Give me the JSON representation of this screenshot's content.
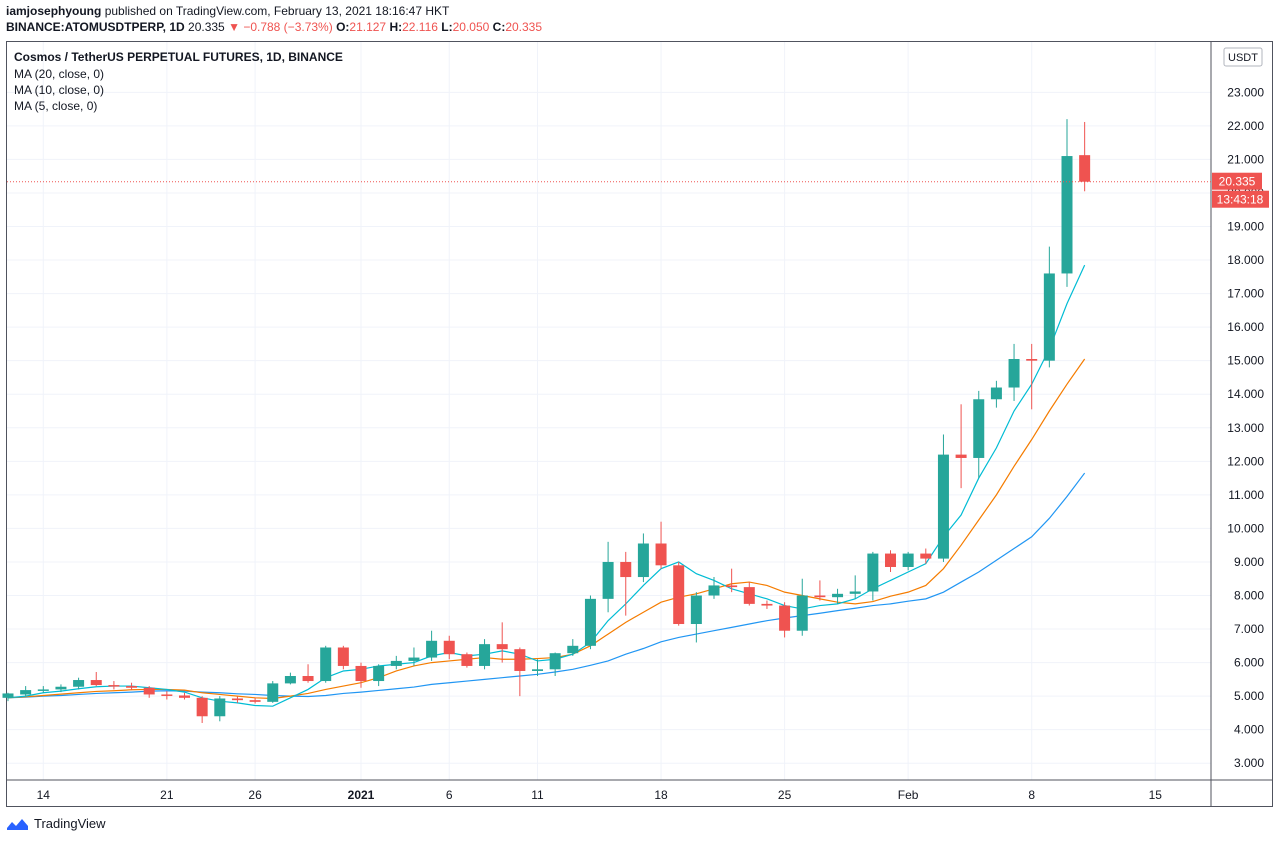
{
  "header": {
    "author": "iamjosephyoung",
    "published_text": "published on TradingView.com, February 13, 2021 18:16:47 HKT",
    "symbol_line": "BINANCE:ATOMUSDTPERP, 1D",
    "price": "20.335",
    "change": "−0.788 (−3.73%)",
    "open_label": "O:",
    "open": "21.127",
    "high_label": "H:",
    "high": "22.116",
    "low_label": "L:",
    "low": "20.050",
    "close_label": "C:",
    "close": "20.335"
  },
  "legend": {
    "title": "Cosmos / TetherUS PERPETUAL FUTURES, 1D, BINANCE",
    "ma20": "MA (20, close, 0)",
    "ma10": "MA (10, close, 0)",
    "ma5": "MA (5, close, 0)"
  },
  "footer": {
    "brand": "TradingView"
  },
  "colors": {
    "up": "#26a69a",
    "down": "#ef5350",
    "ma20": "#2196f3",
    "ma10": "#f57c00",
    "ma5": "#00bcd4",
    "grid": "#f0f3fa"
  },
  "chart_data": {
    "type": "candlestick",
    "y_axis_unit": "USDT",
    "ylim": [
      2.5,
      24.5
    ],
    "y_ticks": [
      "3.000",
      "4.000",
      "5.000",
      "6.000",
      "7.000",
      "8.000",
      "9.000",
      "10.000",
      "11.000",
      "12.000",
      "13.000",
      "14.000",
      "15.000",
      "16.000",
      "17.000",
      "18.000",
      "19.000",
      "20.000",
      "21.000",
      "22.000",
      "23.000"
    ],
    "x_ticks": [
      {
        "label": "14",
        "date": "2020-12-14"
      },
      {
        "label": "21",
        "date": "2020-12-21"
      },
      {
        "label": "26",
        "date": "2020-12-26"
      },
      {
        "label": "2021",
        "date": "2021-01-01"
      },
      {
        "label": "6",
        "date": "2021-01-06"
      },
      {
        "label": "11",
        "date": "2021-01-11"
      },
      {
        "label": "18",
        "date": "2021-01-18"
      },
      {
        "label": "25",
        "date": "2021-01-25"
      },
      {
        "label": "Feb",
        "date": "2021-02-01"
      },
      {
        "label": "8",
        "date": "2021-02-08"
      },
      {
        "label": "15",
        "date": "2021-02-15"
      }
    ],
    "last_price_label": "20.335",
    "countdown_label": "13:43:18",
    "candles": [
      {
        "date": "2020-12-12",
        "o": 4.95,
        "h": 5.1,
        "l": 4.85,
        "c": 5.08
      },
      {
        "date": "2020-12-13",
        "o": 5.05,
        "h": 5.3,
        "l": 5.0,
        "c": 5.18
      },
      {
        "date": "2020-12-14",
        "o": 5.18,
        "h": 5.3,
        "l": 5.1,
        "c": 5.2
      },
      {
        "date": "2020-12-15",
        "o": 5.2,
        "h": 5.35,
        "l": 5.12,
        "c": 5.28
      },
      {
        "date": "2020-12-16",
        "o": 5.28,
        "h": 5.55,
        "l": 5.2,
        "c": 5.48
      },
      {
        "date": "2020-12-17",
        "o": 5.48,
        "h": 5.72,
        "l": 5.3,
        "c": 5.33
      },
      {
        "date": "2020-12-18",
        "o": 5.33,
        "h": 5.45,
        "l": 5.2,
        "c": 5.3
      },
      {
        "date": "2020-12-19",
        "o": 5.3,
        "h": 5.4,
        "l": 5.18,
        "c": 5.25
      },
      {
        "date": "2020-12-20",
        "o": 5.25,
        "h": 5.3,
        "l": 4.95,
        "c": 5.05
      },
      {
        "date": "2020-12-21",
        "o": 5.05,
        "h": 5.15,
        "l": 4.9,
        "c": 5.02
      },
      {
        "date": "2020-12-22",
        "o": 5.02,
        "h": 5.1,
        "l": 4.9,
        "c": 4.95
      },
      {
        "date": "2020-12-23",
        "o": 4.95,
        "h": 5.0,
        "l": 4.2,
        "c": 4.4
      },
      {
        "date": "2020-12-24",
        "o": 4.4,
        "h": 5.0,
        "l": 4.25,
        "c": 4.93
      },
      {
        "date": "2020-12-25",
        "o": 4.93,
        "h": 5.0,
        "l": 4.8,
        "c": 4.88
      },
      {
        "date": "2020-12-26",
        "o": 4.88,
        "h": 4.95,
        "l": 4.78,
        "c": 4.83
      },
      {
        "date": "2020-12-27",
        "o": 4.83,
        "h": 5.45,
        "l": 4.8,
        "c": 5.38
      },
      {
        "date": "2020-12-28",
        "o": 5.38,
        "h": 5.7,
        "l": 5.35,
        "c": 5.6
      },
      {
        "date": "2020-12-29",
        "o": 5.6,
        "h": 5.95,
        "l": 5.4,
        "c": 5.45
      },
      {
        "date": "2020-12-30",
        "o": 5.45,
        "h": 6.5,
        "l": 5.4,
        "c": 6.45
      },
      {
        "date": "2020-12-31",
        "o": 6.45,
        "h": 6.5,
        "l": 5.8,
        "c": 5.9
      },
      {
        "date": "2021-01-01",
        "o": 5.9,
        "h": 6.0,
        "l": 5.25,
        "c": 5.45
      },
      {
        "date": "2021-01-02",
        "o": 5.45,
        "h": 5.95,
        "l": 5.3,
        "c": 5.9
      },
      {
        "date": "2021-01-03",
        "o": 5.9,
        "h": 6.2,
        "l": 5.8,
        "c": 6.05
      },
      {
        "date": "2021-01-04",
        "o": 6.05,
        "h": 6.45,
        "l": 5.9,
        "c": 6.15
      },
      {
        "date": "2021-01-05",
        "o": 6.15,
        "h": 6.95,
        "l": 6.05,
        "c": 6.65
      },
      {
        "date": "2021-01-06",
        "o": 6.65,
        "h": 6.8,
        "l": 6.1,
        "c": 6.25
      },
      {
        "date": "2021-01-07",
        "o": 6.25,
        "h": 6.3,
        "l": 5.85,
        "c": 5.9
      },
      {
        "date": "2021-01-08",
        "o": 5.9,
        "h": 6.7,
        "l": 5.8,
        "c": 6.55
      },
      {
        "date": "2021-01-09",
        "o": 6.55,
        "h": 7.2,
        "l": 6.0,
        "c": 6.4
      },
      {
        "date": "2021-01-10",
        "o": 6.4,
        "h": 6.45,
        "l": 5.0,
        "c": 5.75
      },
      {
        "date": "2021-01-11",
        "o": 5.75,
        "h": 6.1,
        "l": 5.6,
        "c": 5.8
      },
      {
        "date": "2021-01-12",
        "o": 5.8,
        "h": 6.3,
        "l": 5.6,
        "c": 6.28
      },
      {
        "date": "2021-01-13",
        "o": 6.28,
        "h": 6.7,
        "l": 6.2,
        "c": 6.5
      },
      {
        "date": "2021-01-14",
        "o": 6.5,
        "h": 8.0,
        "l": 6.4,
        "c": 7.9
      },
      {
        "date": "2021-01-15",
        "o": 7.9,
        "h": 9.6,
        "l": 7.5,
        "c": 9.0
      },
      {
        "date": "2021-01-16",
        "o": 9.0,
        "h": 9.3,
        "l": 7.4,
        "c": 8.55
      },
      {
        "date": "2021-01-17",
        "o": 8.55,
        "h": 9.85,
        "l": 8.4,
        "c": 9.55
      },
      {
        "date": "2021-01-18",
        "o": 9.55,
        "h": 10.2,
        "l": 8.8,
        "c": 8.9
      },
      {
        "date": "2021-01-19",
        "o": 8.9,
        "h": 9.0,
        "l": 7.1,
        "c": 7.15
      },
      {
        "date": "2021-01-20",
        "o": 7.15,
        "h": 8.1,
        "l": 6.6,
        "c": 8.0
      },
      {
        "date": "2021-01-21",
        "o": 8.0,
        "h": 8.55,
        "l": 7.9,
        "c": 8.3
      },
      {
        "date": "2021-01-22",
        "o": 8.3,
        "h": 8.8,
        "l": 8.1,
        "c": 8.25
      },
      {
        "date": "2021-01-23",
        "o": 8.25,
        "h": 8.4,
        "l": 7.7,
        "c": 7.75
      },
      {
        "date": "2021-01-24",
        "o": 7.75,
        "h": 7.85,
        "l": 7.6,
        "c": 7.7
      },
      {
        "date": "2021-01-25",
        "o": 7.7,
        "h": 7.8,
        "l": 6.75,
        "c": 6.95
      },
      {
        "date": "2021-01-26",
        "o": 6.95,
        "h": 8.5,
        "l": 6.8,
        "c": 8.0
      },
      {
        "date": "2021-01-27",
        "o": 8.0,
        "h": 8.45,
        "l": 7.85,
        "c": 7.95
      },
      {
        "date": "2021-01-28",
        "o": 7.95,
        "h": 8.2,
        "l": 7.75,
        "c": 8.05
      },
      {
        "date": "2021-01-29",
        "o": 8.05,
        "h": 8.6,
        "l": 7.9,
        "c": 8.12
      },
      {
        "date": "2021-01-30",
        "o": 8.12,
        "h": 9.3,
        "l": 7.85,
        "c": 9.25
      },
      {
        "date": "2021-01-31",
        "o": 9.25,
        "h": 9.35,
        "l": 8.7,
        "c": 8.85
      },
      {
        "date": "2021-02-01",
        "o": 8.85,
        "h": 9.3,
        "l": 8.75,
        "c": 9.25
      },
      {
        "date": "2021-02-02",
        "o": 9.25,
        "h": 9.4,
        "l": 8.95,
        "c": 9.1
      },
      {
        "date": "2021-02-03",
        "o": 9.1,
        "h": 12.8,
        "l": 9.0,
        "c": 12.2
      },
      {
        "date": "2021-02-04",
        "o": 12.2,
        "h": 13.7,
        "l": 11.2,
        "c": 12.1
      },
      {
        "date": "2021-02-05",
        "o": 12.1,
        "h": 14.1,
        "l": 11.5,
        "c": 13.85
      },
      {
        "date": "2021-02-06",
        "o": 13.85,
        "h": 14.4,
        "l": 13.6,
        "c": 14.2
      },
      {
        "date": "2021-02-07",
        "o": 14.2,
        "h": 15.5,
        "l": 13.8,
        "c": 15.05
      },
      {
        "date": "2021-02-08",
        "o": 15.05,
        "h": 15.5,
        "l": 13.55,
        "c": 15.0
      },
      {
        "date": "2021-02-09",
        "o": 15.0,
        "h": 18.4,
        "l": 14.8,
        "c": 17.6
      },
      {
        "date": "2021-02-10",
        "o": 17.6,
        "h": 22.2,
        "l": 17.2,
        "c": 21.1
      },
      {
        "date": "2021-02-11",
        "o": 21.127,
        "h": 22.116,
        "l": 20.05,
        "c": 20.335
      }
    ],
    "series": [
      {
        "name": "MA (20, close, 0)",
        "values": [
          4.95,
          4.97,
          5.0,
          5.02,
          5.05,
          5.08,
          5.1,
          5.12,
          5.15,
          5.16,
          5.15,
          5.12,
          5.1,
          5.07,
          5.05,
          5.02,
          5.0,
          4.99,
          5.02,
          5.08,
          5.12,
          5.17,
          5.22,
          5.27,
          5.35,
          5.4,
          5.45,
          5.5,
          5.55,
          5.6,
          5.65,
          5.72,
          5.8,
          5.92,
          6.05,
          6.25,
          6.42,
          6.62,
          6.75,
          6.85,
          6.95,
          7.05,
          7.15,
          7.25,
          7.33,
          7.4,
          7.47,
          7.55,
          7.62,
          7.7,
          7.75,
          7.83,
          7.9,
          8.1,
          8.4,
          8.7,
          9.05,
          9.4,
          9.75,
          10.3,
          10.95,
          11.65
        ]
      },
      {
        "name": "MA (10, close, 0)",
        "values": [
          4.95,
          4.98,
          5.02,
          5.06,
          5.1,
          5.14,
          5.16,
          5.19,
          5.2,
          5.2,
          5.18,
          5.1,
          5.05,
          5.0,
          4.95,
          4.93,
          5.0,
          5.08,
          5.2,
          5.3,
          5.4,
          5.55,
          5.75,
          5.9,
          6.0,
          6.05,
          6.1,
          6.15,
          6.1,
          6.1,
          6.12,
          6.15,
          6.25,
          6.5,
          6.85,
          7.2,
          7.5,
          7.8,
          7.95,
          8.05,
          8.2,
          8.35,
          8.4,
          8.3,
          8.1,
          8.0,
          7.9,
          7.8,
          7.75,
          7.82,
          7.98,
          8.1,
          8.3,
          8.8,
          9.5,
          10.25,
          11.0,
          11.85,
          12.65,
          13.5,
          14.3,
          15.05
        ]
      },
      {
        "name": "MA (5, close, 0)",
        "values": [
          4.95,
          5.0,
          5.1,
          5.15,
          5.22,
          5.28,
          5.3,
          5.3,
          5.25,
          5.2,
          5.12,
          4.95,
          4.85,
          4.8,
          4.72,
          4.7,
          4.95,
          5.2,
          5.55,
          5.75,
          5.8,
          5.9,
          5.95,
          6.0,
          6.2,
          6.3,
          6.2,
          6.25,
          6.35,
          6.25,
          6.05,
          6.1,
          6.25,
          6.6,
          7.25,
          7.75,
          8.3,
          8.8,
          9.0,
          8.65,
          8.45,
          8.2,
          8.05,
          7.9,
          7.7,
          7.6,
          7.7,
          7.75,
          7.9,
          8.2,
          8.45,
          8.7,
          8.95,
          9.75,
          10.4,
          11.5,
          12.4,
          13.5,
          14.3,
          15.35,
          16.7,
          17.85
        ]
      }
    ]
  }
}
